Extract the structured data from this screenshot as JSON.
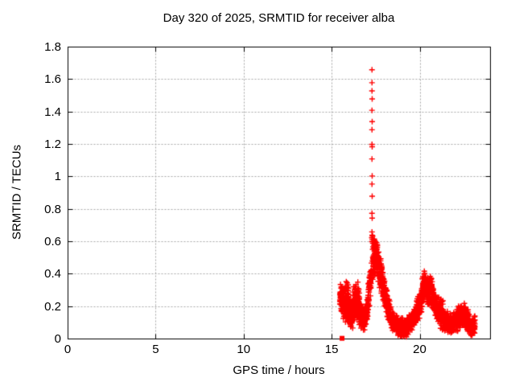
{
  "chart_data": {
    "type": "scatter",
    "title": "Day 320 of 2025, SRMTID for receiver alba",
    "xlabel": "GPS time / hours",
    "ylabel": "SRMTID / TECUs",
    "xlim": [
      0,
      24
    ],
    "ylim": [
      0,
      1.8
    ],
    "xticks": [
      0,
      5,
      10,
      15,
      20
    ],
    "xtick_labels": [
      "0",
      "5",
      "10",
      "15",
      "20"
    ],
    "yticks": [
      0,
      0.2,
      0.4,
      0.6,
      0.8,
      1,
      1.2,
      1.4,
      1.6,
      1.8
    ],
    "ytick_labels": [
      "0",
      "0.2",
      "0.4",
      "0.6",
      "0.8",
      "1",
      "1.2",
      "1.4",
      "1.6",
      "1.8"
    ],
    "grid": true,
    "legend": "none",
    "colors": {
      "points": "#ff0000",
      "grid": "#a8a8a8",
      "axis": "#000000",
      "text": "#000000",
      "background": "#ffffff"
    },
    "data_x_range": [
      15.45,
      23.12
    ],
    "series": [
      {
        "name": "SRMTID",
        "marker": "plus",
        "color": "#ff0000",
        "seed": 320,
        "spike_points": [
          [
            17.27,
            1.66
          ],
          [
            17.27,
            1.58
          ],
          [
            17.27,
            1.53
          ],
          [
            17.28,
            1.48
          ],
          [
            17.27,
            1.41
          ],
          [
            17.28,
            1.34
          ],
          [
            17.27,
            1.29
          ],
          [
            17.27,
            1.2
          ],
          [
            17.28,
            1.185
          ],
          [
            17.27,
            1.11
          ],
          [
            17.28,
            1.005
          ],
          [
            17.27,
            0.955
          ],
          [
            17.28,
            0.88
          ],
          [
            17.27,
            0.775
          ],
          [
            17.28,
            0.745
          ],
          [
            17.27,
            0.66
          ],
          [
            17.28,
            0.64
          ],
          [
            17.26,
            0.625
          ],
          [
            17.29,
            0.615
          ],
          [
            17.27,
            0.6
          ]
        ],
        "band_segments": [
          [
            15.45,
            15.62,
            0.27,
            0.24,
            0.06,
            0.08,
            50
          ],
          [
            15.62,
            15.95,
            0.22,
            0.23,
            0.1,
            0.1,
            110
          ],
          [
            15.95,
            16.18,
            0.17,
            0.15,
            0.07,
            0.07,
            80
          ],
          [
            16.18,
            16.55,
            0.22,
            0.23,
            0.09,
            0.09,
            120
          ],
          [
            16.55,
            16.85,
            0.16,
            0.12,
            0.06,
            0.06,
            90
          ],
          [
            16.85,
            17.05,
            0.13,
            0.2,
            0.05,
            0.06,
            60
          ],
          [
            17.05,
            17.24,
            0.25,
            0.4,
            0.08,
            0.08,
            55
          ],
          [
            17.3,
            17.58,
            0.5,
            0.52,
            0.1,
            0.1,
            90
          ],
          [
            17.58,
            17.95,
            0.47,
            0.32,
            0.09,
            0.08,
            100
          ],
          [
            17.95,
            18.35,
            0.28,
            0.14,
            0.07,
            0.05,
            110
          ],
          [
            18.35,
            18.75,
            0.12,
            0.08,
            0.05,
            0.04,
            110
          ],
          [
            18.75,
            19.25,
            0.07,
            0.07,
            0.045,
            0.045,
            140
          ],
          [
            19.25,
            19.75,
            0.08,
            0.13,
            0.05,
            0.05,
            140
          ],
          [
            19.75,
            20.08,
            0.15,
            0.23,
            0.06,
            0.06,
            100
          ],
          [
            20.08,
            20.28,
            0.27,
            0.35,
            0.07,
            0.07,
            60
          ],
          [
            20.28,
            20.45,
            0.34,
            0.29,
            0.08,
            0.07,
            50
          ],
          [
            20.45,
            20.68,
            0.29,
            0.31,
            0.08,
            0.08,
            60
          ],
          [
            20.68,
            20.98,
            0.27,
            0.17,
            0.07,
            0.06,
            80
          ],
          [
            20.98,
            21.3,
            0.18,
            0.14,
            0.09,
            0.07,
            85
          ],
          [
            21.3,
            21.75,
            0.12,
            0.09,
            0.06,
            0.05,
            110
          ],
          [
            21.75,
            22.15,
            0.09,
            0.12,
            0.05,
            0.06,
            100
          ],
          [
            22.15,
            22.55,
            0.13,
            0.15,
            0.06,
            0.06,
            100
          ],
          [
            22.55,
            22.85,
            0.13,
            0.09,
            0.06,
            0.05,
            80
          ],
          [
            22.85,
            23.12,
            0.07,
            0.08,
            0.04,
            0.05,
            70
          ]
        ]
      },
      {
        "name": "start-marker",
        "marker": "square",
        "color": "#ff0000",
        "points": [
          [
            15.57,
            0.004
          ]
        ]
      }
    ]
  }
}
